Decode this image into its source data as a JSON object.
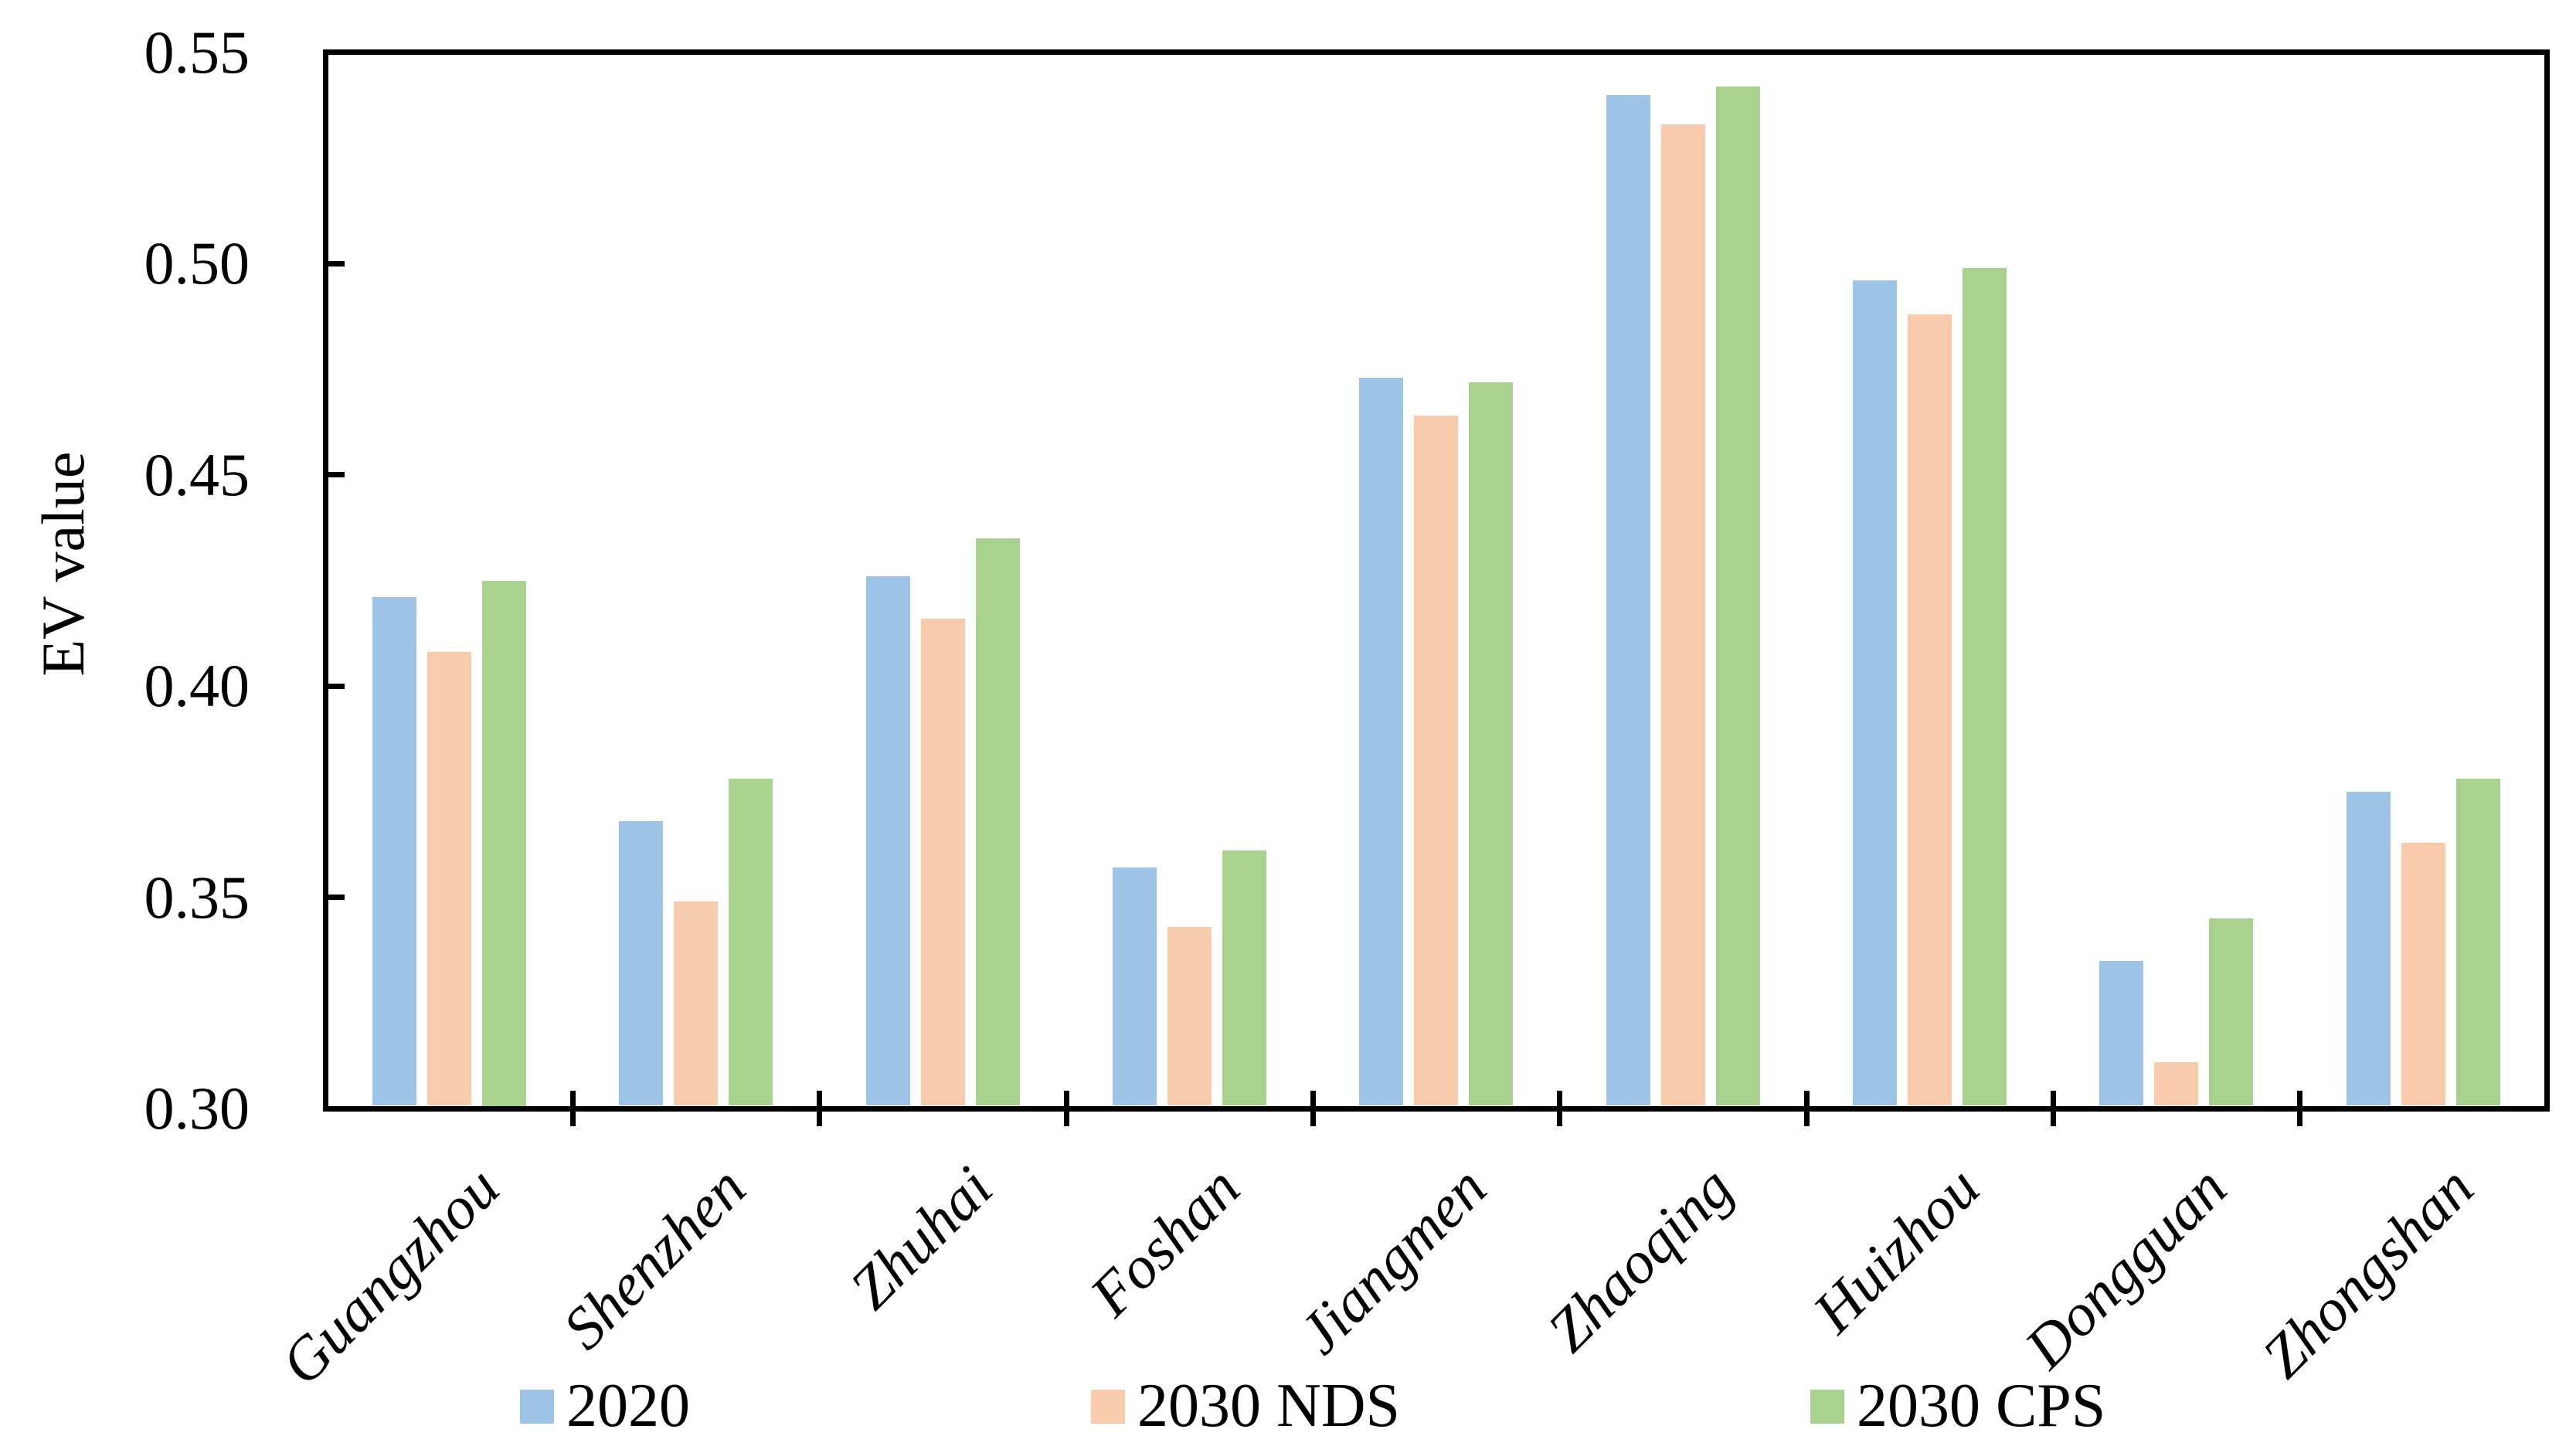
{
  "background": "#FFFFFF",
  "axis_color": "#000000",
  "chart_data": {
    "type": "bar",
    "title": "",
    "xlabel": "",
    "ylabel": "EV value",
    "ylim": [
      0.3,
      0.55
    ],
    "yticks": [
      0.3,
      0.35,
      0.4,
      0.45,
      0.5,
      0.55
    ],
    "ytick_decimals": 2,
    "grid": false,
    "legend_position": "bottom",
    "categories": [
      "Guangzhou",
      "Shenzhen",
      "Zhuhai",
      "Foshan",
      "Jiangmen",
      "Zhaoqing",
      "Huizhou",
      "Dongguan",
      "Zhongshan"
    ],
    "series": [
      {
        "name": "2020",
        "color": "#9DC3E6",
        "values": [
          0.421,
          0.368,
          0.426,
          0.357,
          0.473,
          0.54,
          0.496,
          0.335,
          0.375
        ]
      },
      {
        "name": "2030 NDS",
        "color": "#F8CBAD",
        "values": [
          0.408,
          0.349,
          0.416,
          0.343,
          0.464,
          0.533,
          0.488,
          0.311,
          0.363
        ]
      },
      {
        "name": "2030 CPS",
        "color": "#A9D18E",
        "values": [
          0.425,
          0.378,
          0.435,
          0.361,
          0.472,
          0.542,
          0.499,
          0.345,
          0.378
        ]
      }
    ]
  }
}
